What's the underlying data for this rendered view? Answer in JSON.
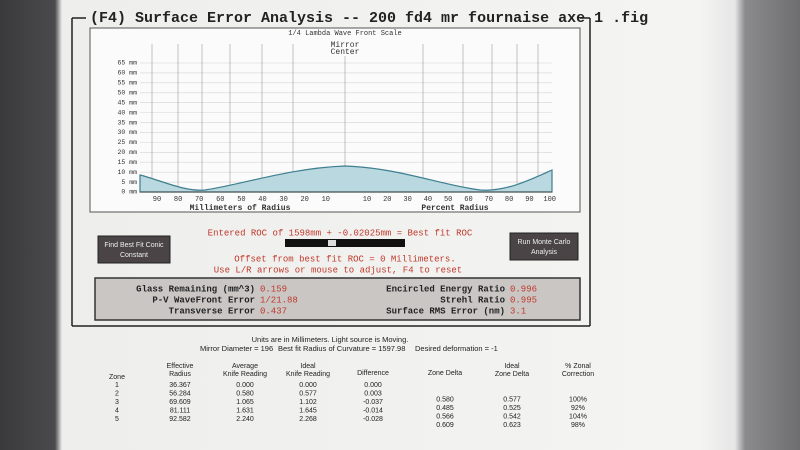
{
  "title": "(F4) Surface Error Analysis -- 200 fd4 mr fournaise axe 1 .fig",
  "graph": {
    "subtitle": "1/4 Lambda Wave Front Scale",
    "center_label": [
      "Mirror",
      "Center"
    ],
    "y_labels": [
      "65 mm",
      "60 mm",
      "55 mm",
      "50 mm",
      "45 mm",
      "40 mm",
      "35 mm",
      "30 mm",
      "25 mm",
      "20 mm",
      "15 mm",
      "10 mm",
      "5 mm",
      "0 mm"
    ],
    "x_labels_left": [
      "90",
      "80",
      "70",
      "60",
      "50",
      "40",
      "30",
      "20",
      "10"
    ],
    "x_labels_right": [
      "10",
      "20",
      "30",
      "40",
      "50",
      "60",
      "70",
      "80",
      "90",
      "100"
    ],
    "x_title_left": "Millimeters of Radius",
    "x_title_right": "Percent Radius"
  },
  "controls": {
    "roc_line": "Entered ROC of 1598mm + -0.02025mm = Best fit ROC",
    "offset_line": "Offset from best fit ROC = 0 Millimeters.",
    "help_line": "Use L/R arrows or mouse to adjust, F4 to reset",
    "left_button": [
      "Find Best Fit Conic",
      "Constant"
    ],
    "right_button": [
      "Run Monte Carlo",
      "Analysis"
    ]
  },
  "results": {
    "left": [
      {
        "label": "Glass Remaining (mm^3)",
        "value": "0.159"
      },
      {
        "label": "P-V WaveFront Error",
        "value": "1/21.88"
      },
      {
        "label": "Transverse Error",
        "value": "0.437"
      }
    ],
    "right": [
      {
        "label": "Encircled Energy Ratio",
        "value": "0.996"
      },
      {
        "label": "Strehl Ratio",
        "value": "0.995"
      },
      {
        "label": "Surface RMS Error (nm)",
        "value": "3.1"
      }
    ]
  },
  "notes": {
    "units": "Units are in Millimeters. Light source is Moving.",
    "diameter": "Mirror Diameter = 196",
    "radius": "Best fit Radius of Curvature = 1597.98",
    "deformation": "Desired deformation = -1"
  },
  "table": {
    "headers": [
      [
        "Zone"
      ],
      [
        "Effective",
        "Radius"
      ],
      [
        "Average",
        "Knife Reading"
      ],
      [
        "Ideal",
        "Knife Reading"
      ],
      [
        "Difference"
      ],
      [
        "Zone Delta"
      ],
      [
        "Ideal",
        "Zone Delta"
      ],
      [
        "% Zonal",
        "Correction"
      ]
    ],
    "rows": [
      [
        "1",
        "36.367",
        "0.000",
        "0.000",
        "0.000"
      ],
      [
        "2",
        "56.284",
        "0.580",
        "0.577",
        "0.003",
        "0.580",
        "0.577",
        "100%"
      ],
      [
        "3",
        "69.609",
        "1.065",
        "1.102",
        "-0.037",
        "0.485",
        "0.525",
        "92%"
      ],
      [
        "4",
        "81.111",
        "1.631",
        "1.645",
        "-0.014",
        "0.566",
        "0.542",
        "104%"
      ],
      [
        "5",
        "92.582",
        "2.240",
        "2.268",
        "-0.028",
        "0.609",
        "0.623",
        "98%"
      ]
    ]
  }
}
